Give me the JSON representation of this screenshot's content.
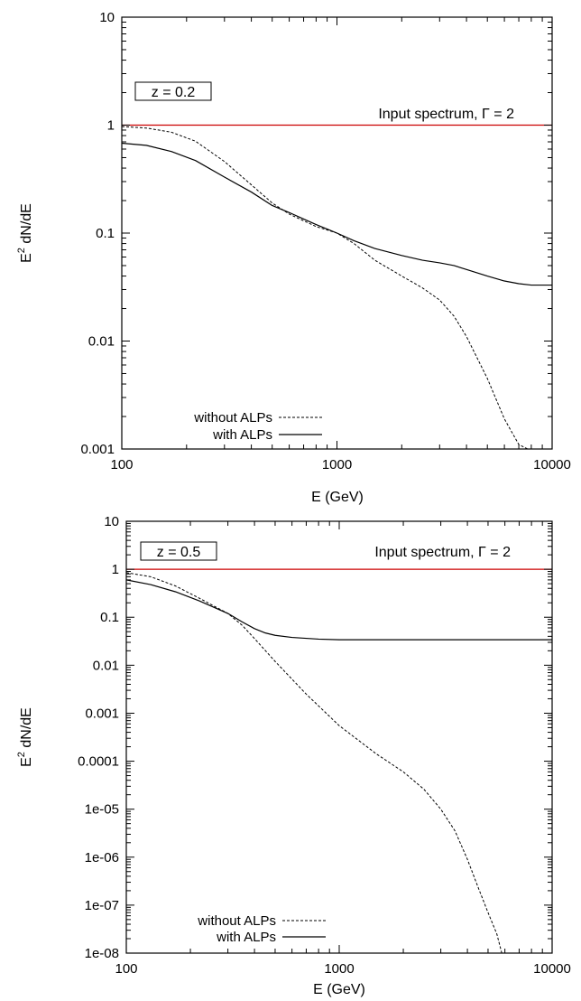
{
  "chart_data": [
    {
      "type": "line",
      "xlabel": "E (GeV)",
      "ylabel": "E² dN/dE",
      "xscale": "log",
      "yscale": "log",
      "xlim": [
        100,
        10000
      ],
      "ylim": [
        0.001,
        10
      ],
      "xticks": [
        "100",
        "1000",
        "10000"
      ],
      "yticks": [
        "0.001",
        "0.01",
        "0.1",
        "1",
        "10"
      ],
      "box_label": "z = 0.2",
      "annotation": "Input spectrum, Γ = 2",
      "legend_position": "bottom-left",
      "grid": false,
      "series": [
        {
          "name": "Input spectrum, Γ = 2",
          "style": "solid",
          "color": "#cc0000",
          "legend": false,
          "x": [
            100,
            10000
          ],
          "y": [
            1,
            1
          ]
        },
        {
          "name": "without ALPs",
          "style": "dashed",
          "color": "#000000",
          "legend": true,
          "x": [
            100,
            130,
            170,
            220,
            300,
            400,
            500,
            600,
            700,
            800,
            1000,
            1200,
            1500,
            2000,
            2500,
            3000,
            3500,
            4000,
            5000,
            6000,
            7000,
            7700
          ],
          "y": [
            0.97,
            0.94,
            0.86,
            0.71,
            0.46,
            0.28,
            0.19,
            0.15,
            0.13,
            0.115,
            0.1,
            0.08,
            0.056,
            0.04,
            0.031,
            0.024,
            0.017,
            0.011,
            0.0045,
            0.0019,
            0.0011,
            0.001
          ]
        },
        {
          "name": "with ALPs",
          "style": "solid",
          "color": "#000000",
          "legend": true,
          "x": [
            100,
            130,
            170,
            220,
            300,
            400,
            500,
            600,
            700,
            800,
            1000,
            1200,
            1500,
            2000,
            2500,
            3000,
            3500,
            4000,
            5000,
            6000,
            7000,
            8000,
            10000
          ],
          "y": [
            0.68,
            0.65,
            0.57,
            0.47,
            0.33,
            0.24,
            0.18,
            0.155,
            0.135,
            0.12,
            0.1,
            0.085,
            0.072,
            0.062,
            0.056,
            0.053,
            0.05,
            0.046,
            0.04,
            0.036,
            0.034,
            0.033,
            0.033
          ]
        }
      ]
    },
    {
      "type": "line",
      "xlabel": "E (GeV)",
      "ylabel": "E² dN/dE",
      "xscale": "log",
      "yscale": "log",
      "xlim": [
        100,
        10000
      ],
      "ylim": [
        1e-08,
        10
      ],
      "xticks": [
        "100",
        "1000",
        "10000"
      ],
      "yticks": [
        "1e-08",
        "1e-07",
        "1e-06",
        "1e-05",
        "0.0001",
        "0.001",
        "0.01",
        "0.1",
        "1",
        "10"
      ],
      "box_label": "z = 0.5",
      "annotation": "Input spectrum, Γ = 2",
      "legend_position": "bottom-left",
      "grid": false,
      "series": [
        {
          "name": "Input spectrum, Γ = 2",
          "style": "solid",
          "color": "#cc0000",
          "legend": false,
          "x": [
            100,
            10000
          ],
          "y": [
            1,
            1
          ]
        },
        {
          "name": "without ALPs",
          "style": "dashed",
          "color": "#000000",
          "legend": true,
          "x": [
            100,
            130,
            170,
            220,
            300,
            350,
            400,
            500,
            700,
            1000,
            1500,
            2000,
            2500,
            3000,
            3500,
            4000,
            4500,
            5000,
            5500,
            5800
          ],
          "y": [
            0.85,
            0.7,
            0.45,
            0.25,
            0.12,
            0.068,
            0.036,
            0.012,
            0.0025,
            0.00055,
            0.00014,
            6e-05,
            2.6e-05,
            1e-05,
            3.5e-06,
            9e-07,
            2.3e-07,
            7e-08,
            2.5e-08,
            1e-08
          ]
        },
        {
          "name": "with ALPs",
          "style": "solid",
          "color": "#000000",
          "legend": true,
          "x": [
            100,
            130,
            170,
            220,
            300,
            350,
            400,
            450,
            500,
            600,
            800,
            1000,
            2000,
            5000,
            10000
          ],
          "y": [
            0.6,
            0.48,
            0.34,
            0.22,
            0.12,
            0.08,
            0.058,
            0.047,
            0.042,
            0.038,
            0.035,
            0.034,
            0.034,
            0.034,
            0.034
          ]
        }
      ]
    }
  ]
}
